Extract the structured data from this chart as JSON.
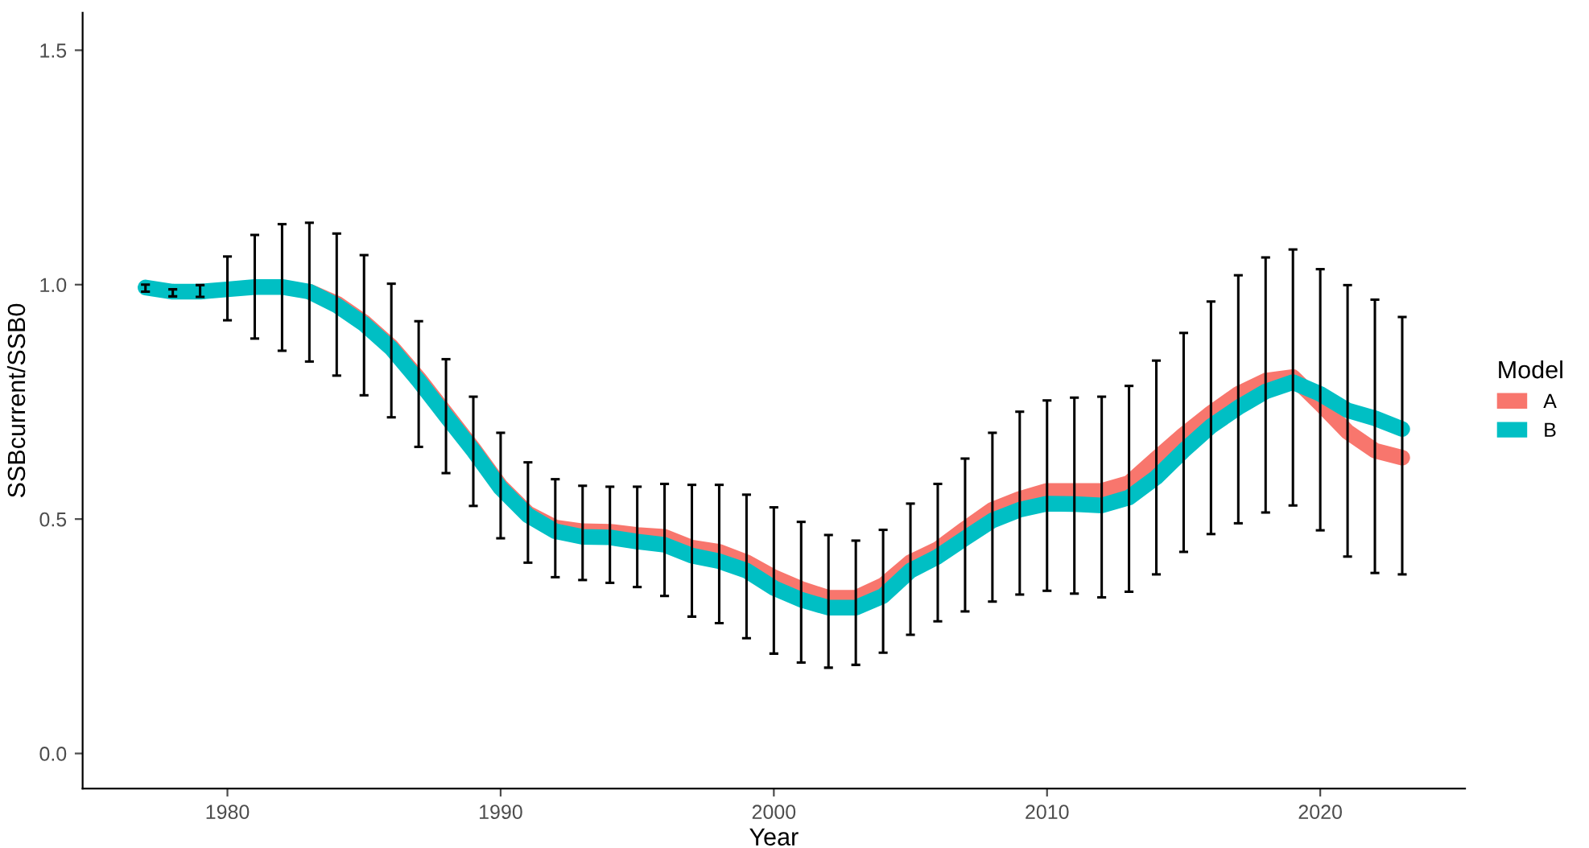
{
  "chart_data": {
    "type": "line",
    "xlabel": "Year",
    "ylabel": "SSBcurrent/SSB0",
    "legend_title": "Model",
    "legend": "right",
    "grid": false,
    "line_style": "solid",
    "marker": "none",
    "x": [
      1977,
      1978,
      1979,
      1980,
      1981,
      1982,
      1983,
      1984,
      1985,
      1986,
      1987,
      1988,
      1989,
      1990,
      1991,
      1992,
      1993,
      1994,
      1995,
      1996,
      1997,
      1998,
      1999,
      2000,
      2001,
      2002,
      2003,
      2004,
      2005,
      2006,
      2007,
      2008,
      2009,
      2010,
      2011,
      2012,
      2013,
      2014,
      2015,
      2016,
      2017,
      2018,
      2019,
      2020,
      2021,
      2022,
      2023
    ],
    "xlim": [
      1974.7,
      2025.3
    ],
    "xticks": [
      1980,
      1990,
      2000,
      2010,
      2020
    ],
    "ylim": [
      -0.075,
      1.58
    ],
    "yticks": [
      {
        "value": 0,
        "label": "0.0"
      },
      0.5,
      {
        "value": 1,
        "label": "1.0"
      },
      1.5
    ],
    "series": [
      {
        "name": "A",
        "color": "#f8766d",
        "values": [
          null,
          null,
          null,
          null,
          null,
          null,
          0.985,
          0.96,
          0.92,
          0.868,
          0.8,
          0.725,
          0.65,
          0.57,
          0.512,
          0.482,
          0.474,
          0.473,
          0.466,
          0.462,
          0.439,
          0.43,
          0.408,
          0.376,
          0.351,
          0.332,
          0.332,
          0.359,
          0.408,
          0.436,
          0.479,
          0.52,
          0.543,
          0.56,
          0.56,
          0.56,
          0.577,
          0.629,
          0.68,
          0.726,
          0.767,
          0.795,
          0.803,
          0.746,
          0.686,
          0.646,
          0.631
        ]
      },
      {
        "name": "B",
        "color": "#00bfc4",
        "values": [
          0.994,
          0.985,
          0.985,
          0.99,
          0.995,
          0.995,
          0.985,
          0.956,
          0.916,
          0.864,
          0.795,
          0.72,
          0.646,
          0.566,
          0.508,
          0.474,
          0.462,
          0.461,
          0.452,
          0.445,
          0.422,
          0.41,
          0.39,
          0.353,
          0.328,
          0.311,
          0.311,
          0.336,
          0.39,
          0.42,
          0.459,
          0.497,
          0.52,
          0.533,
          0.532,
          0.529,
          0.546,
          0.589,
          0.646,
          0.698,
          0.738,
          0.772,
          0.792,
          0.767,
          0.732,
          0.715,
          0.692
        ],
        "errors": [
          [
            0.985,
            1.0
          ],
          [
            0.975,
            0.99
          ],
          [
            0.974,
            0.999
          ],
          [
            0.924,
            1.06
          ],
          [
            0.885,
            1.106
          ],
          [
            0.859,
            1.129
          ],
          [
            0.836,
            1.132
          ],
          [
            0.806,
            1.109
          ],
          [
            0.764,
            1.063
          ],
          [
            0.717,
            1.002
          ],
          [
            0.654,
            0.922
          ],
          [
            0.598,
            0.841
          ],
          [
            0.528,
            0.761
          ],
          [
            0.459,
            0.684
          ],
          [
            0.407,
            0.621
          ],
          [
            0.376,
            0.585
          ],
          [
            0.37,
            0.571
          ],
          [
            0.364,
            0.569
          ],
          [
            0.355,
            0.569
          ],
          [
            0.336,
            0.575
          ],
          [
            0.292,
            0.573
          ],
          [
            0.278,
            0.573
          ],
          [
            0.246,
            0.552
          ],
          [
            0.213,
            0.525
          ],
          [
            0.194,
            0.494
          ],
          [
            0.183,
            0.466
          ],
          [
            0.189,
            0.454
          ],
          [
            0.215,
            0.477
          ],
          [
            0.253,
            0.533
          ],
          [
            0.282,
            0.575
          ],
          [
            0.303,
            0.629
          ],
          [
            0.324,
            0.684
          ],
          [
            0.339,
            0.729
          ],
          [
            0.347,
            0.753
          ],
          [
            0.341,
            0.759
          ],
          [
            0.333,
            0.761
          ],
          [
            0.345,
            0.784
          ],
          [
            0.382,
            0.838
          ],
          [
            0.43,
            0.897
          ],
          [
            0.468,
            0.964
          ],
          [
            0.491,
            1.02
          ],
          [
            0.514,
            1.058
          ],
          [
            0.529,
            1.075
          ],
          [
            0.476,
            1.033
          ],
          [
            0.42,
            0.999
          ],
          [
            0.385,
            0.968
          ],
          [
            0.382,
            0.931
          ]
        ]
      }
    ]
  }
}
